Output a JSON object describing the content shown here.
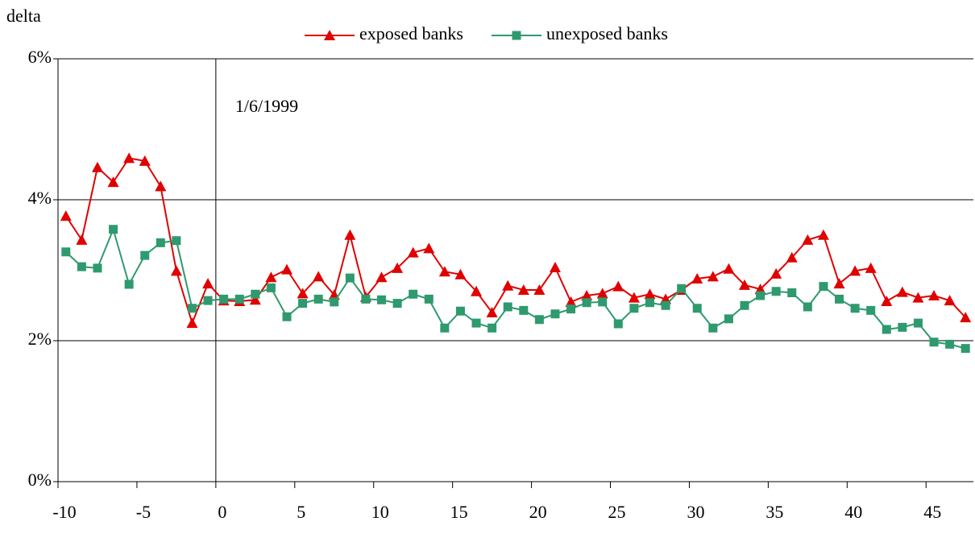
{
  "chart_data": {
    "type": "line",
    "ylabel": "delta",
    "annotation": {
      "x": 0,
      "text": "1/6/1999"
    },
    "x": [
      -9.5,
      -8.5,
      -7.5,
      -6.5,
      -5.5,
      -4.5,
      -3.5,
      -2.5,
      -1.5,
      -0.5,
      0.5,
      1.5,
      2.5,
      3.5,
      4.5,
      5.5,
      6.5,
      7.5,
      8.5,
      9.5,
      10.5,
      11.5,
      12.5,
      13.5,
      14.5,
      15.5,
      16.5,
      17.5,
      18.5,
      19.5,
      20.5,
      21.5,
      22.5,
      23.5,
      24.5,
      25.5,
      26.5,
      27.5,
      28.5,
      29.5,
      30.5,
      31.5,
      32.5,
      33.5,
      34.5,
      35.5,
      36.5,
      37.5,
      38.5,
      39.5,
      40.5,
      41.5,
      42.5,
      43.5,
      44.5,
      45.5,
      46.5,
      47.5
    ],
    "series": [
      {
        "name": "exposed banks",
        "color": "#e00000",
        "marker": "triangle",
        "values": [
          3.77,
          3.43,
          4.46,
          4.25,
          4.59,
          4.55,
          4.19,
          2.99,
          2.25,
          2.81,
          2.57,
          2.56,
          2.58,
          2.9,
          3.01,
          2.67,
          2.91,
          2.65,
          3.5,
          2.62,
          2.9,
          3.03,
          3.25,
          3.31,
          2.98,
          2.94,
          2.7,
          2.4,
          2.78,
          2.72,
          2.72,
          3.04,
          2.55,
          2.64,
          2.67,
          2.77,
          2.61,
          2.66,
          2.59,
          2.72,
          2.88,
          2.91,
          3.02,
          2.79,
          2.73,
          2.95,
          3.18,
          3.43,
          3.5,
          2.81,
          2.99,
          3.03,
          2.56,
          2.69,
          2.61,
          2.64,
          2.57,
          2.33
        ]
      },
      {
        "name": "unexposed banks",
        "color": "#2e9a6e",
        "marker": "square",
        "values": [
          3.26,
          3.05,
          3.03,
          3.58,
          2.8,
          3.21,
          3.39,
          3.42,
          2.46,
          2.57,
          2.59,
          2.59,
          2.66,
          2.75,
          2.34,
          2.53,
          2.59,
          2.55,
          2.89,
          2.59,
          2.58,
          2.53,
          2.66,
          2.59,
          2.18,
          2.42,
          2.25,
          2.18,
          2.48,
          2.43,
          2.3,
          2.38,
          2.45,
          2.54,
          2.55,
          2.24,
          2.46,
          2.54,
          2.5,
          2.74,
          2.46,
          2.18,
          2.31,
          2.5,
          2.64,
          2.7,
          2.68,
          2.48,
          2.77,
          2.59,
          2.46,
          2.43,
          2.16,
          2.19,
          2.25,
          1.98,
          1.95,
          1.89
        ]
      }
    ],
    "xlim": [
      -10,
      48
    ],
    "xticks": [
      -10,
      -5,
      0,
      5,
      10,
      15,
      20,
      25,
      30,
      35,
      40,
      45
    ],
    "ylim": [
      0,
      6
    ],
    "yticks": [
      {
        "value": 0,
        "label": "0%"
      },
      {
        "value": 2,
        "label": "2%"
      },
      {
        "value": 4,
        "label": "4%"
      },
      {
        "value": 6,
        "label": "6%"
      }
    ],
    "grid": true,
    "legend": "top"
  }
}
